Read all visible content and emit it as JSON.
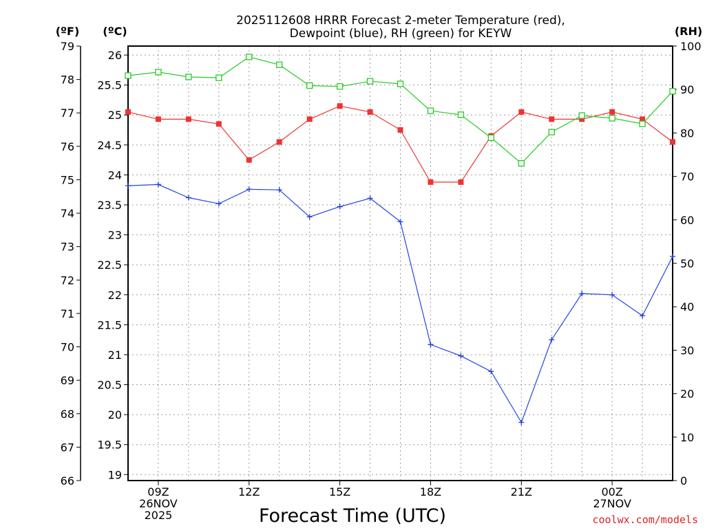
{
  "chart_data": {
    "type": "line",
    "title_line1": "2025112608 HRRR Forecast 2-meter Temperature (red),",
    "title_line2": "Dewpoint (blue), RH (green) for KEYW",
    "xlabel": "Forecast Time (UTC)",
    "credit": "coolwx.com/models",
    "unit_f": "(ºF)",
    "unit_c": "(ºC)",
    "unit_rh": "(RH)",
    "x_hours": [
      8,
      9,
      10,
      11,
      12,
      13,
      14,
      15,
      16,
      17,
      18,
      19,
      20,
      21,
      22,
      23,
      24,
      25,
      26
    ],
    "xlim": [
      8,
      26
    ],
    "x_ticks": [
      {
        "hour": 9,
        "lines": [
          "09Z",
          "26NOV",
          "2025"
        ]
      },
      {
        "hour": 12,
        "lines": [
          "12Z"
        ]
      },
      {
        "hour": 15,
        "lines": [
          "15Z"
        ]
      },
      {
        "hour": 18,
        "lines": [
          "18Z"
        ]
      },
      {
        "hour": 21,
        "lines": [
          "21Z"
        ]
      },
      {
        "hour": 24,
        "lines": [
          "00Z",
          "27NOV"
        ]
      }
    ],
    "ylim_c": [
      18.9,
      26.15
    ],
    "ylim_f": [
      66,
      79
    ],
    "ylim_rh": [
      0,
      100
    ],
    "c_ticks": [
      19,
      19.5,
      20,
      20.5,
      21,
      21.5,
      22,
      22.5,
      23,
      23.5,
      24,
      24.5,
      25,
      25.5,
      26
    ],
    "c_tick_labels": [
      "19",
      "19.5",
      "20",
      "20.5",
      "21",
      "21.5",
      "22",
      "22.5",
      "23",
      "23.5",
      "24",
      "24.5",
      "25",
      "25.5",
      "26"
    ],
    "f_ticks": [
      66,
      67,
      68,
      69,
      70,
      71,
      72,
      73,
      74,
      75,
      76,
      77,
      78,
      79
    ],
    "f_tick_labels": [
      "66",
      "67",
      "68",
      "69",
      "70",
      "71",
      "72",
      "73",
      "74",
      "75",
      "76",
      "77",
      "78",
      "79"
    ],
    "rh_ticks": [
      0,
      10,
      20,
      30,
      40,
      50,
      60,
      70,
      80,
      90,
      100
    ],
    "rh_tick_labels": [
      "0",
      "10",
      "20",
      "30",
      "40",
      "50",
      "60",
      "70",
      "80",
      "90",
      "100"
    ],
    "series": [
      {
        "name": "Temperature",
        "axis": "c",
        "color": "#ee3333",
        "marker": "filled-square",
        "values": [
          25.05,
          24.93,
          24.93,
          24.85,
          24.25,
          24.55,
          24.93,
          25.15,
          25.05,
          24.75,
          23.88,
          23.88,
          24.65,
          25.05,
          24.93,
          24.93,
          25.05,
          24.93,
          24.55
        ]
      },
      {
        "name": "Dewpoint",
        "axis": "c",
        "color": "#2244dd",
        "marker": "plus",
        "values": [
          23.82,
          23.84,
          23.62,
          23.52,
          23.76,
          23.75,
          23.3,
          23.47,
          23.61,
          23.22,
          21.17,
          20.98,
          20.72,
          19.87,
          21.25,
          22.02,
          22.0,
          21.65,
          22.64
        ]
      },
      {
        "name": "RH",
        "axis": "rh",
        "color": "#22cc22",
        "marker": "open-square",
        "values": [
          93.2,
          94.0,
          92.9,
          92.7,
          97.5,
          95.7,
          90.9,
          90.7,
          91.9,
          91.3,
          85.1,
          84.2,
          78.9,
          73.0,
          80.2,
          84.0,
          83.4,
          82.1,
          89.6
        ]
      }
    ]
  }
}
